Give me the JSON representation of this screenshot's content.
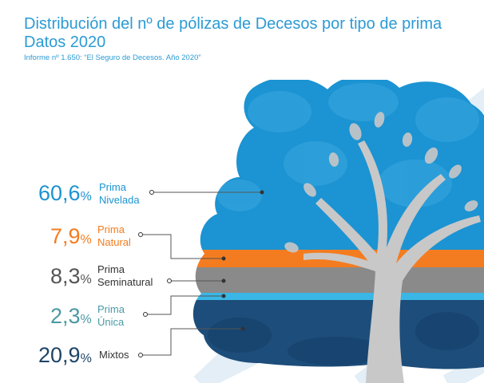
{
  "header": {
    "title_line1": "Distribución del nº de pólizas de Decesos por tipo de prima",
    "title_line2": "Datos 2020",
    "subtitle": "Informe nº 1.650: “El Seguro de Decesos. Año 2020”"
  },
  "colors": {
    "title": "#2b9bd4",
    "canopy_blue": "#1c93d2",
    "canopy_light": "#3aa8e0",
    "natural_band": "#f47c20",
    "seminatural_band": "#8a8a8a",
    "unica_band": "#3ab7e6",
    "mixtos_band": "#1d4d7a",
    "trunk": "#c8c8c8",
    "leader_line": "#555555"
  },
  "chart_data": {
    "type": "pie",
    "categories": [
      "Prima Nivelada",
      "Prima Natural",
      "Prima Seminatural",
      "Prima Única",
      "Mixtos"
    ],
    "values": [
      60.6,
      7.9,
      8.3,
      2.3,
      20.9
    ],
    "unit": "%",
    "title": "Distribución del nº de pólizas de Decesos por tipo de prima",
    "subtitle": "Datos 2020",
    "series": [
      {
        "key": "nivelada",
        "value_text": "60,6",
        "symbol": "%",
        "label_line1": "Prima",
        "label_line2": "Nivelada",
        "color": "#1c93d2"
      },
      {
        "key": "natural",
        "value_text": "7,9",
        "symbol": "%",
        "label_line1": "Prima",
        "label_line2": "Natural",
        "color": "#f47c20"
      },
      {
        "key": "seminatural",
        "value_text": "8,3",
        "symbol": "%",
        "label_line1": "Prima",
        "label_line2": "Seminatural",
        "color": "#555555"
      },
      {
        "key": "unica",
        "value_text": "2,3",
        "symbol": "%",
        "label_line1": "Prima",
        "label_line2": "Única",
        "color": "#4a9aa5"
      },
      {
        "key": "mixtos",
        "value_text": "20,9",
        "symbol": "%",
        "label_line1": "Mixtos",
        "label_line2": "",
        "color": "#1d4468"
      }
    ]
  }
}
